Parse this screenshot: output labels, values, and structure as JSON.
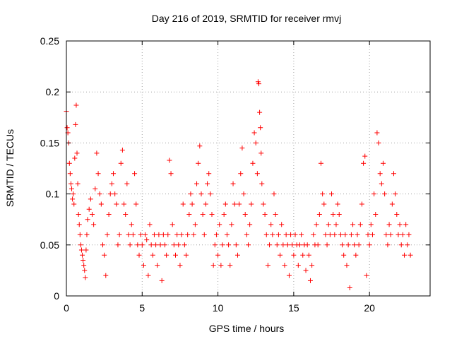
{
  "chart_data": {
    "type": "scatter",
    "title": "Day 216 of 2019, SRMTID for receiver rmvj",
    "xlabel": "GPS time / hours",
    "ylabel": "SRMTID / TECUs",
    "xlim": [
      0,
      24
    ],
    "ylim": [
      0,
      0.25
    ],
    "xticks": [
      0,
      5,
      10,
      15,
      20
    ],
    "xtick_labels": [
      "0",
      "5",
      "10",
      "15",
      "20"
    ],
    "yticks": [
      0,
      0.05,
      0.1,
      0.15,
      0.2,
      0.25
    ],
    "ytick_labels": [
      "0",
      "0.05",
      "0.1",
      "0.15",
      "0.2",
      "0.25"
    ],
    "grid": true,
    "marker": "+",
    "series": [
      {
        "name": "SRMTID",
        "color": "#ff0000",
        "points": [
          [
            0.0,
            0.181
          ],
          [
            0.05,
            0.165
          ],
          [
            0.1,
            0.16
          ],
          [
            0.15,
            0.15
          ],
          [
            0.2,
            0.13
          ],
          [
            0.25,
            0.12
          ],
          [
            0.3,
            0.11
          ],
          [
            0.35,
            0.105
          ],
          [
            0.4,
            0.095
          ],
          [
            0.45,
            0.1
          ],
          [
            0.5,
            0.09
          ],
          [
            0.55,
            0.135
          ],
          [
            0.6,
            0.168
          ],
          [
            0.65,
            0.187
          ],
          [
            0.7,
            0.14
          ],
          [
            0.75,
            0.11
          ],
          [
            0.8,
            0.08
          ],
          [
            0.85,
            0.07
          ],
          [
            0.9,
            0.06
          ],
          [
            0.95,
            0.05
          ],
          [
            1.0,
            0.045
          ],
          [
            1.05,
            0.04
          ],
          [
            1.1,
            0.035
          ],
          [
            1.15,
            0.03
          ],
          [
            1.2,
            0.025
          ],
          [
            1.25,
            0.018
          ],
          [
            1.3,
            0.045
          ],
          [
            1.35,
            0.06
          ],
          [
            1.4,
            0.075
          ],
          [
            1.5,
            0.085
          ],
          [
            1.6,
            0.095
          ],
          [
            1.7,
            0.08
          ],
          [
            1.8,
            0.07
          ],
          [
            1.9,
            0.105
          ],
          [
            2.0,
            0.14
          ],
          [
            2.1,
            0.12
          ],
          [
            2.2,
            0.1
          ],
          [
            2.3,
            0.09
          ],
          [
            2.4,
            0.05
          ],
          [
            2.5,
            0.04
          ],
          [
            2.6,
            0.02
          ],
          [
            2.7,
            0.06
          ],
          [
            2.8,
            0.08
          ],
          [
            2.9,
            0.1
          ],
          [
            3.0,
            0.11
          ],
          [
            3.1,
            0.12
          ],
          [
            3.2,
            0.1
          ],
          [
            3.3,
            0.09
          ],
          [
            3.4,
            0.05
          ],
          [
            3.5,
            0.06
          ],
          [
            3.6,
            0.13
          ],
          [
            3.7,
            0.143
          ],
          [
            3.8,
            0.09
          ],
          [
            3.9,
            0.08
          ],
          [
            4.0,
            0.11
          ],
          [
            4.1,
            0.06
          ],
          [
            4.2,
            0.05
          ],
          [
            4.3,
            0.07
          ],
          [
            4.4,
            0.06
          ],
          [
            4.5,
            0.12
          ],
          [
            4.6,
            0.09
          ],
          [
            4.7,
            0.05
          ],
          [
            4.8,
            0.04
          ],
          [
            4.9,
            0.06
          ],
          [
            5.0,
            0.05
          ],
          [
            5.1,
            0.03
          ],
          [
            5.2,
            0.06
          ],
          [
            5.3,
            0.055
          ],
          [
            5.4,
            0.02
          ],
          [
            5.5,
            0.07
          ],
          [
            5.6,
            0.05
          ],
          [
            5.7,
            0.04
          ],
          [
            5.8,
            0.06
          ],
          [
            5.9,
            0.05
          ],
          [
            6.0,
            0.03
          ],
          [
            6.1,
            0.06
          ],
          [
            6.2,
            0.05
          ],
          [
            6.3,
            0.015
          ],
          [
            6.4,
            0.06
          ],
          [
            6.5,
            0.05
          ],
          [
            6.6,
            0.04
          ],
          [
            6.7,
            0.06
          ],
          [
            6.8,
            0.133
          ],
          [
            6.9,
            0.12
          ],
          [
            7.0,
            0.07
          ],
          [
            7.1,
            0.05
          ],
          [
            7.2,
            0.04
          ],
          [
            7.3,
            0.06
          ],
          [
            7.4,
            0.05
          ],
          [
            7.5,
            0.03
          ],
          [
            7.6,
            0.06
          ],
          [
            7.7,
            0.09
          ],
          [
            7.8,
            0.05
          ],
          [
            7.9,
            0.04
          ],
          [
            8.0,
            0.06
          ],
          [
            8.1,
            0.08
          ],
          [
            8.2,
            0.1
          ],
          [
            8.3,
            0.09
          ],
          [
            8.4,
            0.06
          ],
          [
            8.5,
            0.07
          ],
          [
            8.6,
            0.11
          ],
          [
            8.7,
            0.13
          ],
          [
            8.8,
            0.147
          ],
          [
            8.9,
            0.1
          ],
          [
            9.0,
            0.08
          ],
          [
            9.1,
            0.06
          ],
          [
            9.2,
            0.09
          ],
          [
            9.3,
            0.11
          ],
          [
            9.4,
            0.12
          ],
          [
            9.5,
            0.1
          ],
          [
            9.6,
            0.08
          ],
          [
            9.7,
            0.03
          ],
          [
            9.8,
            0.05
          ],
          [
            9.9,
            0.06
          ],
          [
            10.0,
            0.04
          ],
          [
            10.1,
            0.07
          ],
          [
            10.2,
            0.03
          ],
          [
            10.3,
            0.05
          ],
          [
            10.4,
            0.08
          ],
          [
            10.5,
            0.09
          ],
          [
            10.6,
            0.06
          ],
          [
            10.7,
            0.05
          ],
          [
            10.8,
            0.03
          ],
          [
            10.9,
            0.07
          ],
          [
            11.0,
            0.11
          ],
          [
            11.1,
            0.09
          ],
          [
            11.2,
            0.05
          ],
          [
            11.3,
            0.04
          ],
          [
            11.4,
            0.09
          ],
          [
            11.5,
            0.12
          ],
          [
            11.6,
            0.145
          ],
          [
            11.7,
            0.1
          ],
          [
            11.8,
            0.08
          ],
          [
            11.9,
            0.06
          ],
          [
            12.0,
            0.05
          ],
          [
            12.1,
            0.07
          ],
          [
            12.2,
            0.09
          ],
          [
            12.3,
            0.13
          ],
          [
            12.4,
            0.16
          ],
          [
            12.5,
            0.15
          ],
          [
            12.6,
            0.12
          ],
          [
            12.65,
            0.21
          ],
          [
            12.7,
            0.208
          ],
          [
            12.75,
            0.18
          ],
          [
            12.8,
            0.165
          ],
          [
            12.85,
            0.14
          ],
          [
            12.9,
            0.11
          ],
          [
            13.0,
            0.09
          ],
          [
            13.1,
            0.08
          ],
          [
            13.2,
            0.06
          ],
          [
            13.3,
            0.03
          ],
          [
            13.4,
            0.05
          ],
          [
            13.5,
            0.07
          ],
          [
            13.6,
            0.06
          ],
          [
            13.7,
            0.1
          ],
          [
            13.8,
            0.08
          ],
          [
            13.9,
            0.05
          ],
          [
            14.0,
            0.06
          ],
          [
            14.1,
            0.04
          ],
          [
            14.2,
            0.07
          ],
          [
            14.3,
            0.05
          ],
          [
            14.4,
            0.03
          ],
          [
            14.5,
            0.06
          ],
          [
            14.6,
            0.05
          ],
          [
            14.7,
            0.02
          ],
          [
            14.8,
            0.06
          ],
          [
            14.9,
            0.05
          ],
          [
            15.0,
            0.04
          ],
          [
            15.1,
            0.06
          ],
          [
            15.2,
            0.05
          ],
          [
            15.3,
            0.03
          ],
          [
            15.4,
            0.05
          ],
          [
            15.5,
            0.06
          ],
          [
            15.6,
            0.04
          ],
          [
            15.7,
            0.05
          ],
          [
            15.8,
            0.025
          ],
          [
            15.9,
            0.05
          ],
          [
            16.0,
            0.04
          ],
          [
            16.1,
            0.015
          ],
          [
            16.2,
            0.03
          ],
          [
            16.3,
            0.06
          ],
          [
            16.4,
            0.05
          ],
          [
            16.5,
            0.07
          ],
          [
            16.6,
            0.05
          ],
          [
            16.7,
            0.08
          ],
          [
            16.8,
            0.13
          ],
          [
            16.9,
            0.1
          ],
          [
            17.0,
            0.09
          ],
          [
            17.1,
            0.06
          ],
          [
            17.2,
            0.05
          ],
          [
            17.3,
            0.07
          ],
          [
            17.4,
            0.06
          ],
          [
            17.5,
            0.1
          ],
          [
            17.6,
            0.08
          ],
          [
            17.7,
            0.06
          ],
          [
            17.8,
            0.07
          ],
          [
            17.9,
            0.09
          ],
          [
            18.0,
            0.08
          ],
          [
            18.1,
            0.06
          ],
          [
            18.2,
            0.05
          ],
          [
            18.3,
            0.04
          ],
          [
            18.4,
            0.06
          ],
          [
            18.5,
            0.03
          ],
          [
            18.6,
            0.05
          ],
          [
            18.7,
            0.008
          ],
          [
            18.8,
            0.06
          ],
          [
            18.9,
            0.07
          ],
          [
            19.0,
            0.05
          ],
          [
            19.1,
            0.04
          ],
          [
            19.2,
            0.06
          ],
          [
            19.3,
            0.05
          ],
          [
            19.4,
            0.07
          ],
          [
            19.5,
            0.09
          ],
          [
            19.6,
            0.13
          ],
          [
            19.7,
            0.137
          ],
          [
            19.8,
            0.02
          ],
          [
            19.9,
            0.06
          ],
          [
            20.0,
            0.05
          ],
          [
            20.1,
            0.07
          ],
          [
            20.2,
            0.06
          ],
          [
            20.3,
            0.1
          ],
          [
            20.4,
            0.08
          ],
          [
            20.5,
            0.16
          ],
          [
            20.6,
            0.15
          ],
          [
            20.7,
            0.12
          ],
          [
            20.8,
            0.11
          ],
          [
            20.9,
            0.13
          ],
          [
            21.0,
            0.1
          ],
          [
            21.1,
            0.06
          ],
          [
            21.2,
            0.05
          ],
          [
            21.3,
            0.07
          ],
          [
            21.4,
            0.06
          ],
          [
            21.5,
            0.09
          ],
          [
            21.6,
            0.12
          ],
          [
            21.7,
            0.1
          ],
          [
            21.8,
            0.08
          ],
          [
            21.9,
            0.06
          ],
          [
            22.0,
            0.07
          ],
          [
            22.1,
            0.05
          ],
          [
            22.2,
            0.06
          ],
          [
            22.3,
            0.04
          ],
          [
            22.4,
            0.07
          ],
          [
            22.5,
            0.05
          ],
          [
            22.6,
            0.06
          ],
          [
            22.7,
            0.04
          ]
        ]
      }
    ]
  }
}
